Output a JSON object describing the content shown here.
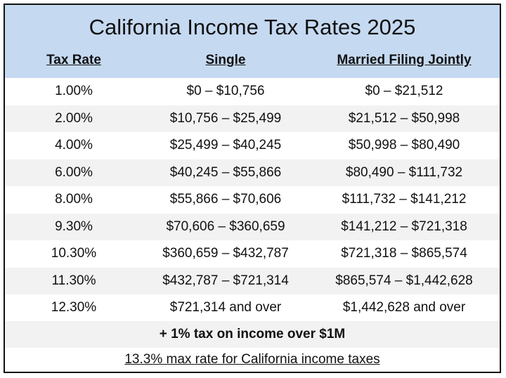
{
  "title": "California Income Tax Rates 2025",
  "columns": [
    "Tax Rate",
    "Single",
    "Married Filing Jointly"
  ],
  "rows": [
    [
      "1.00%",
      "$0 – $10,756",
      "$0 – $21,512"
    ],
    [
      "2.00%",
      "$10,756 – $25,499",
      "$21,512 – $50,998"
    ],
    [
      "4.00%",
      "$25,499 – $40,245",
      "$50,998 – $80,490"
    ],
    [
      "6.00%",
      "$40,245 – $55,866",
      "$80,490 – $111,732"
    ],
    [
      "8.00%",
      "$55,866 – $70,606",
      "$111,732 – $141,212"
    ],
    [
      "9.30%",
      "$70,606 – $360,659",
      "$141,212 – $721,318"
    ],
    [
      "10.30%",
      "$360,659 – $432,787",
      "$721,318 – $865,574"
    ],
    [
      "11.30%",
      "$432,787 – $721,314",
      "$865,574 – $1,442,628"
    ],
    [
      "12.30%",
      "$721,314 and over",
      "$1,442,628 and over"
    ]
  ],
  "note": "+ 1% tax on income over $1M",
  "footer": "13.3% max rate for California income taxes",
  "colors": {
    "header_bg": "#c5d9f1",
    "shade_bg": "#f2f2f2",
    "border": "#111111"
  }
}
